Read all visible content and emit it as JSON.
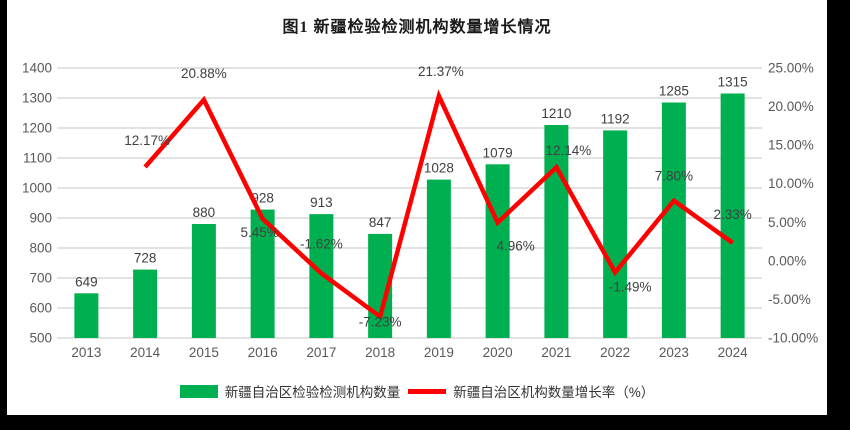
{
  "frame": {
    "outer_background": "#000000",
    "canvas_background": "#FFFFFF"
  },
  "chart_data": {
    "type": "combo",
    "title": "图1 新疆检验检测机构数量增长情况",
    "categories": [
      "2013",
      "2014",
      "2015",
      "2016",
      "2017",
      "2018",
      "2019",
      "2020",
      "2021",
      "2022",
      "2023",
      "2024"
    ],
    "series": [
      {
        "name": "新疆自治区检验检测机构数量",
        "chart_type": "bar",
        "axis": "left",
        "color": "#00B050",
        "values": [
          649,
          728,
          880,
          928,
          913,
          847,
          1028,
          1079,
          1210,
          1192,
          1285,
          1315
        ],
        "labels": [
          "649",
          "728",
          "880",
          "928",
          "913",
          "847",
          "1028",
          "1079",
          "1210",
          "1192",
          "1285",
          "1315"
        ]
      },
      {
        "name": "新疆自治区机构数量增长率（%）",
        "chart_type": "line",
        "axis": "right",
        "color": "#FF0000",
        "values": [
          null,
          12.17,
          20.88,
          5.45,
          -1.62,
          -7.23,
          21.37,
          4.96,
          12.14,
          -1.49,
          7.8,
          2.33
        ],
        "labels": [
          "",
          "12.17%",
          "20.88%",
          "5.45%",
          "-1.62%",
          "-7.23%",
          "21.37%",
          "4.96%",
          "12.14%",
          "-1.49%",
          "7.80%",
          "2.33%"
        ],
        "label_offsets": [
          null,
          [
            2,
            -22
          ],
          [
            0,
            -22
          ],
          [
            -3,
            18
          ],
          [
            0,
            -25
          ],
          [
            0,
            10
          ],
          [
            2,
            -20
          ],
          [
            18,
            28
          ],
          [
            12,
            -12
          ],
          [
            15,
            19
          ],
          [
            0,
            -20
          ],
          [
            0,
            -24
          ]
        ]
      }
    ],
    "left_axis": {
      "min": 500,
      "max": 1400,
      "step": 100,
      "ticks": [
        "1400",
        "1300",
        "1200",
        "1100",
        "1000",
        "900",
        "800",
        "700",
        "600",
        "500"
      ]
    },
    "right_axis": {
      "min": -10,
      "max": 25,
      "step": 5,
      "ticks": [
        "25.00%",
        "20.00%",
        "15.00%",
        "10.00%",
        "5.00%",
        "0.00%",
        "-5.00%",
        "-10.00%"
      ]
    },
    "grid": true,
    "legend_position": "bottom",
    "colors": {
      "gridline": "#D9D9D9",
      "tick_text": "#595959",
      "data_label": "#404040"
    }
  }
}
